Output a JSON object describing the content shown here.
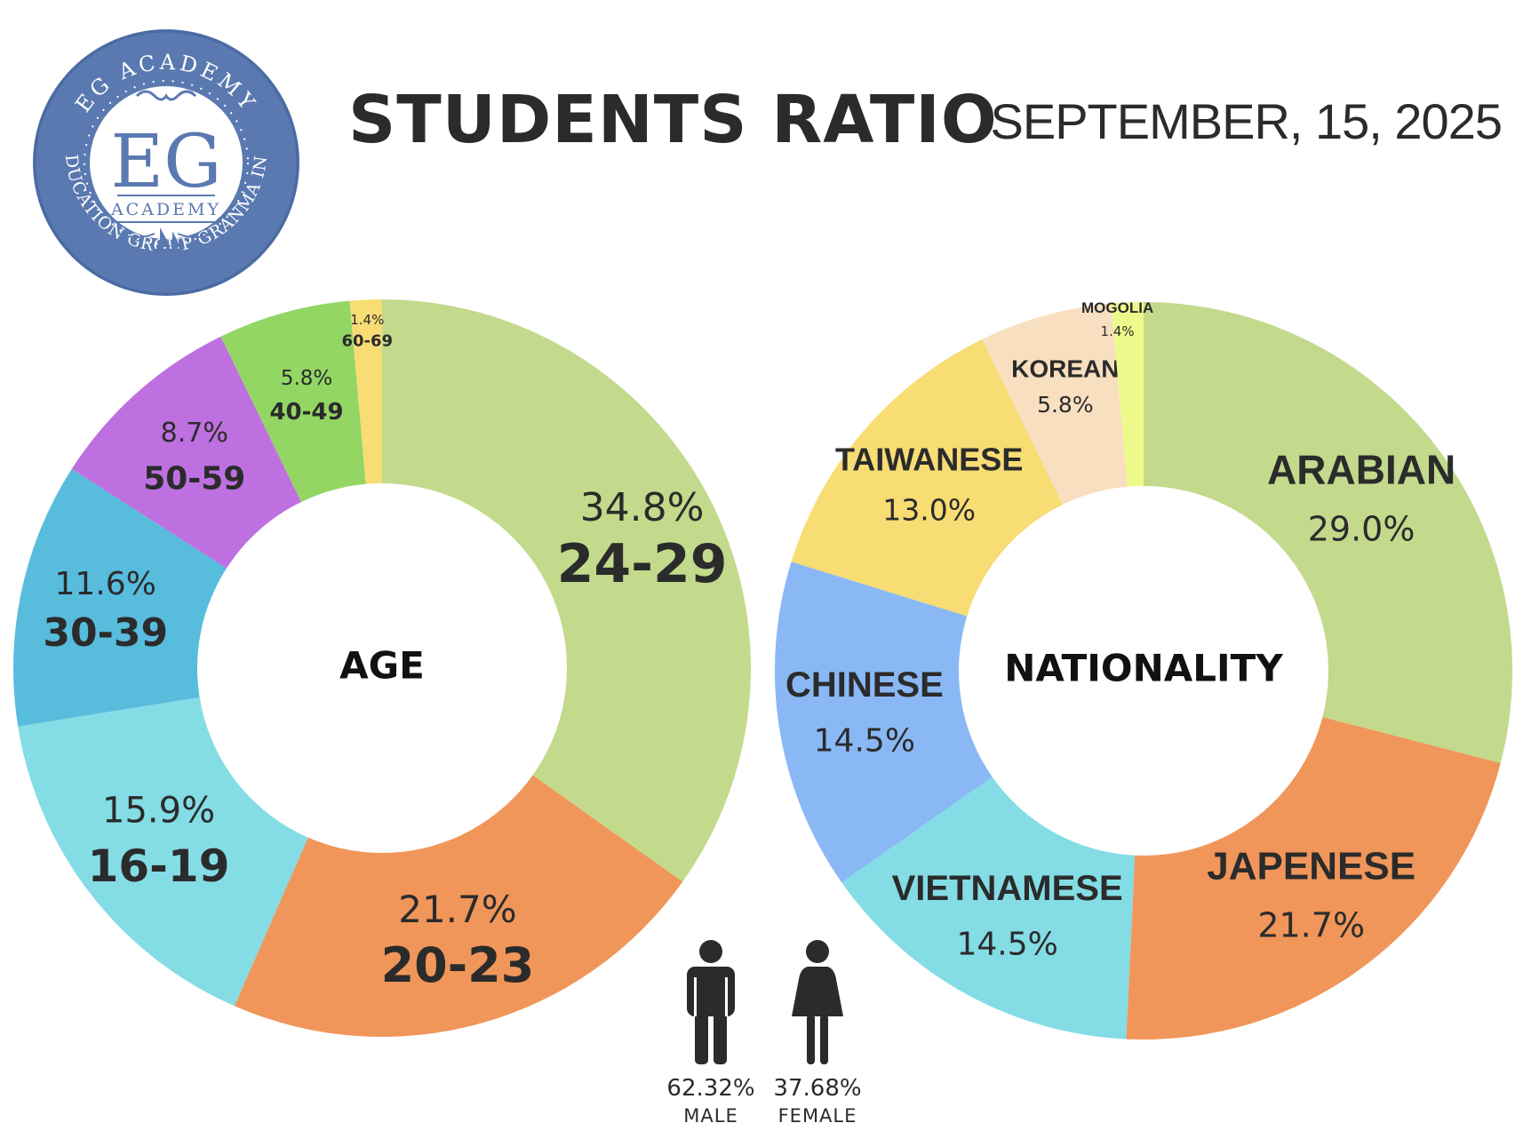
{
  "header": {
    "title": "STUDENTS RATIO",
    "date": "SEPTEMBER, 15, 2025"
  },
  "logo": {
    "top_text": "EG ACADEMY",
    "monogram": "EG",
    "word": "ACADEMY",
    "bottom_text": "EDUCATION GROUP GRANMA INC",
    "colors": {
      "ring": "#5A79B0",
      "inner": "#ffffff",
      "text": "#5A79B0"
    }
  },
  "chart_data": [
    {
      "type": "pie",
      "center_label": "AGE",
      "slices": [
        {
          "label": "24-29",
          "value": 34.8,
          "display": "34.8%",
          "color": "#C3D98C"
        },
        {
          "label": "20-23",
          "value": 21.7,
          "display": "21.7%",
          "color": "#F0965A"
        },
        {
          "label": "16-19",
          "value": 15.9,
          "display": "15.9%",
          "color": "#84DCE5"
        },
        {
          "label": "30-39",
          "value": 11.6,
          "display": "11.6%",
          "color": "#58BCDD"
        },
        {
          "label": "50-59",
          "value": 8.7,
          "display": "8.7%",
          "color": "#BE70E0"
        },
        {
          "label": "40-49",
          "value": 5.8,
          "display": "5.8%",
          "color": "#93D664"
        },
        {
          "label": "60-69",
          "value": 1.4,
          "display": "1.4%",
          "color": "#F8DC74"
        }
      ]
    },
    {
      "type": "pie",
      "center_label": "NATIONALITY",
      "slices": [
        {
          "label": "ARABIAN",
          "value": 29.0,
          "display": "29.0%",
          "color": "#C3D98C"
        },
        {
          "label": "JAPENESE",
          "value": 21.7,
          "display": "21.7%",
          "color": "#F0965A"
        },
        {
          "label": "VIETNAMESE",
          "value": 14.5,
          "display": "14.5%",
          "color": "#84DCE5"
        },
        {
          "label": "CHINESE",
          "value": 14.5,
          "display": "14.5%",
          "color": "#89B8F5"
        },
        {
          "label": "TAIWANESE",
          "value": 13.0,
          "display": "13.0%",
          "color": "#F8DC74"
        },
        {
          "label": "KOREAN",
          "value": 5.8,
          "display": "5.8%",
          "color": "#F7DFC0"
        },
        {
          "label": "MOGOLIA",
          "value": 1.4,
          "display": "1.4%",
          "color": "#EEF98C"
        }
      ]
    }
  ],
  "gender": [
    {
      "label": "MALE",
      "display": "62.32%",
      "value": 62.32,
      "icon": "male-person-icon"
    },
    {
      "label": "FEMALE",
      "display": "37.68%",
      "value": 37.68,
      "icon": "female-person-icon"
    }
  ]
}
